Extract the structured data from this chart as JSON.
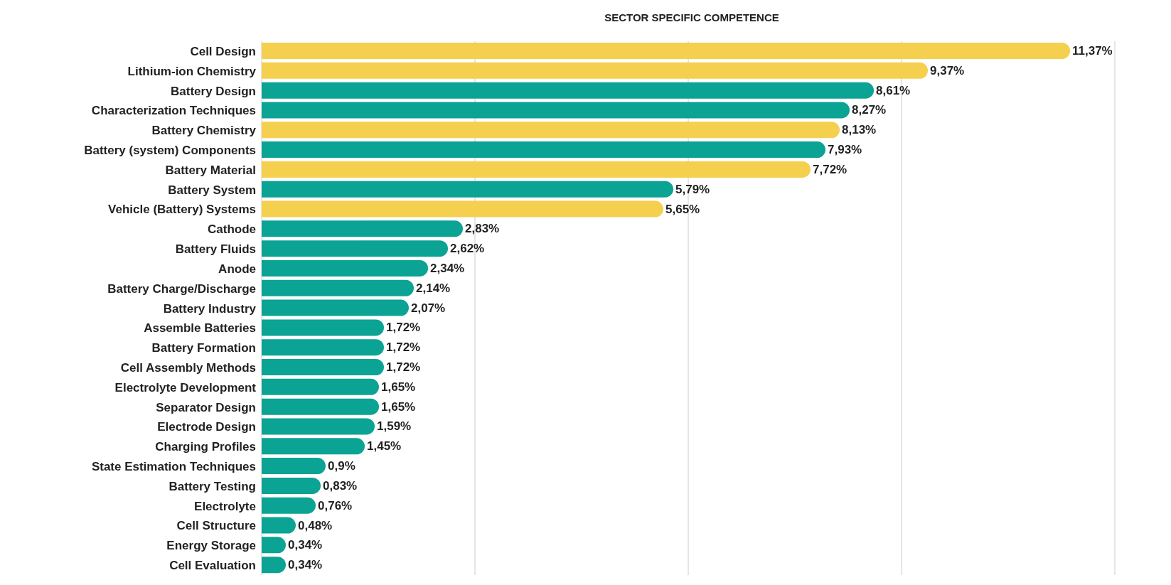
{
  "chart_data": {
    "type": "bar",
    "orientation": "horizontal",
    "title": "SECTOR SPECIFIC COMPETENCE",
    "categories": [
      "Cell Design",
      "Lithium-ion Chemistry",
      "Battery Design",
      "Characterization Techniques",
      "Battery Chemistry",
      "Battery (system) Components",
      "Battery Material",
      "Battery System",
      "Vehicle (Battery) Systems",
      "Cathode",
      "Battery Fluids",
      "Anode",
      "Battery Charge/Discharge",
      "Battery Industry",
      "Assemble Batteries",
      "Battery Formation",
      "Cell Assembly Methods",
      "Electrolyte Development",
      "Separator Design",
      "Electrode Design",
      "Charging Profiles",
      "State Estimation Techniques",
      "Battery Testing",
      "Electrolyte",
      "Cell Structure",
      "Energy Storage",
      "Cell Evaluation"
    ],
    "values": [
      11.37,
      9.37,
      8.61,
      8.27,
      8.13,
      7.93,
      7.72,
      5.79,
      5.65,
      2.83,
      2.62,
      2.34,
      2.14,
      2.07,
      1.72,
      1.72,
      1.72,
      1.65,
      1.65,
      1.59,
      1.45,
      0.9,
      0.83,
      0.76,
      0.48,
      0.34,
      0.34
    ],
    "value_labels": [
      "11,37%",
      "9,37%",
      "8,61%",
      "8,27%",
      "8,13%",
      "7,93%",
      "7,72%",
      "5,79%",
      "5,65%",
      "2,83%",
      "2,62%",
      "2,34%",
      "2,14%",
      "2,07%",
      "1,72%",
      "1,72%",
      "1,72%",
      "1,65%",
      "1,65%",
      "1,59%",
      "1,45%",
      "0,9%",
      "0,83%",
      "0,76%",
      "0,48%",
      "0,34%",
      "0,34%"
    ],
    "colors": [
      "#f5d04e",
      "#f5d04e",
      "#0aa394",
      "#0aa394",
      "#f5d04e",
      "#0aa394",
      "#f5d04e",
      "#0aa394",
      "#f5d04e",
      "#0aa394",
      "#0aa394",
      "#0aa394",
      "#0aa394",
      "#0aa394",
      "#0aa394",
      "#0aa394",
      "#0aa394",
      "#0aa394",
      "#0aa394",
      "#0aa394",
      "#0aa394",
      "#0aa394",
      "#0aa394",
      "#0aa394",
      "#0aa394",
      "#0aa394",
      "#0aa394"
    ],
    "grid": "x",
    "tick_labels": "y",
    "legend": false
  }
}
